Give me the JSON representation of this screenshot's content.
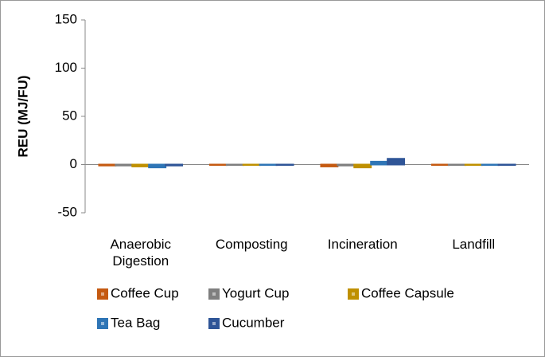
{
  "chart_data": {
    "type": "bar",
    "y_label": "REU (MJ/FU)",
    "categories": [
      "Anaerobic Digestion",
      "Composting",
      "Incineration",
      "Landfill"
    ],
    "series": [
      {
        "name": "Coffee Cup",
        "color": "#c55a11",
        "values": [
          -1,
          -0.5,
          -2,
          -0.5
        ]
      },
      {
        "name": "Yogurt Cup",
        "color": "#7f7f7f",
        "values": [
          -1,
          -0.5,
          -1,
          -0.5
        ]
      },
      {
        "name": "Coffee Capsule",
        "color": "#bf9000",
        "values": [
          -2,
          -0.5,
          -3,
          -0.5
        ]
      },
      {
        "name": "Tea Bag",
        "color": "#2e75b6",
        "values": [
          -3,
          -0.5,
          3,
          -0.5
        ]
      },
      {
        "name": "Cucumber",
        "color": "#2f5597",
        "values": [
          -1,
          -0.5,
          6,
          -0.5
        ]
      }
    ],
    "ylim": [
      -50,
      150
    ],
    "yticks": [
      -50,
      0,
      50,
      100,
      150
    ],
    "grid": false
  }
}
